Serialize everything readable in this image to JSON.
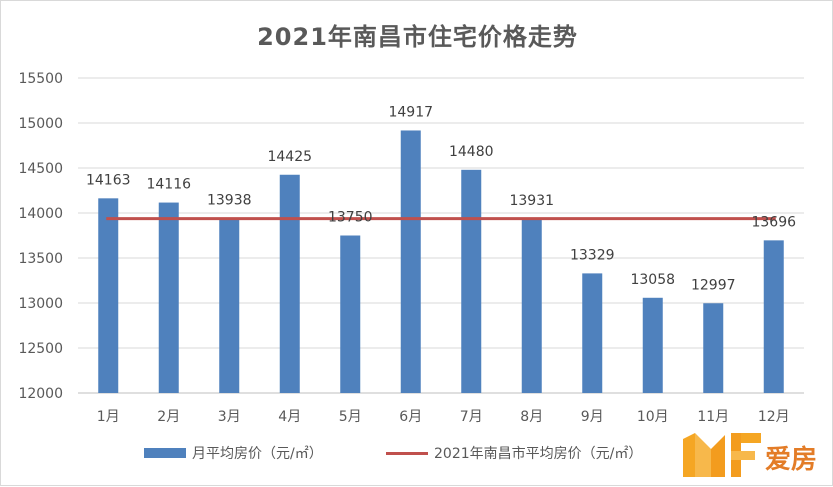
{
  "chart_data": {
    "type": "bar",
    "title": "2021年南昌市住宅价格走势",
    "categories": [
      "1月",
      "2月",
      "3月",
      "4月",
      "5月",
      "6月",
      "7月",
      "8月",
      "9月",
      "10月",
      "11月",
      "12月"
    ],
    "series": [
      {
        "name": "月平均房价（元/㎡）",
        "type": "bar",
        "color": "#4f81bd",
        "values": [
          14163,
          14116,
          13938,
          14425,
          13750,
          14917,
          14480,
          13931,
          13329,
          13058,
          12997,
          13696
        ]
      },
      {
        "name": "2021年南昌市平均房价（元/㎡）",
        "type": "line",
        "color": "#c0504d",
        "value": 13938
      }
    ],
    "y_ticks": [
      "12000",
      "12500",
      "13000",
      "13500",
      "14000",
      "14500",
      "15000",
      "15500"
    ],
    "ylim": [
      12000,
      15500
    ],
    "grid": true,
    "legend": "bottom"
  },
  "watermark": {
    "logo": "Hf-logo",
    "text": "爱房",
    "color": "#e2761c"
  }
}
